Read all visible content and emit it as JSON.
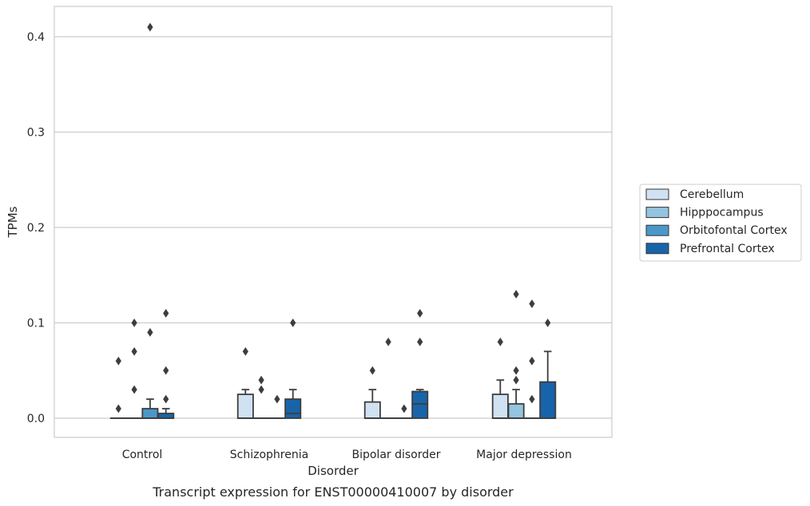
{
  "chart_data": {
    "type": "box",
    "caption": "Transcript expression for ENST00000410007 by disorder",
    "xlabel": "Disorder",
    "ylabel": "TPMs",
    "ylim": [
      -0.02,
      0.43
    ],
    "yticks": [
      0.0,
      0.1,
      0.2,
      0.3,
      0.4
    ],
    "ytick_labels": [
      "0.0",
      "0.1",
      "0.2",
      "0.3",
      "0.4"
    ],
    "grid": "horizontal",
    "legend_position": "right",
    "categories": [
      "Control",
      "Schizophrenia",
      "Bipolar disorder",
      "Major depression"
    ],
    "series": [
      {
        "name": "Cerebellum",
        "color": "#d0e1f2",
        "boxes": [
          {
            "q1": 0,
            "median": 0,
            "q3": 0,
            "whisker_low": 0,
            "whisker_high": 0,
            "outliers": [
              0.01,
              0.06
            ]
          },
          {
            "q1": 0,
            "median": 0,
            "q3": 0.025,
            "whisker_low": 0,
            "whisker_high": 0.03,
            "outliers": [
              0.07
            ]
          },
          {
            "q1": 0,
            "median": 0,
            "q3": 0.017,
            "whisker_low": 0,
            "whisker_high": 0.03,
            "outliers": [
              0.05
            ]
          },
          {
            "q1": 0,
            "median": 0,
            "q3": 0.025,
            "whisker_low": 0,
            "whisker_high": 0.04,
            "outliers": [
              0.08
            ]
          }
        ]
      },
      {
        "name": "Hipppocampus",
        "color": "#94c4df",
        "boxes": [
          {
            "q1": 0,
            "median": 0,
            "q3": 0,
            "whisker_low": 0,
            "whisker_high": 0,
            "outliers": [
              0.03,
              0.07,
              0.1
            ]
          },
          {
            "q1": 0,
            "median": 0,
            "q3": 0,
            "whisker_low": 0,
            "whisker_high": 0,
            "outliers": [
              0.03,
              0.04
            ]
          },
          {
            "q1": 0,
            "median": 0,
            "q3": 0,
            "whisker_low": 0,
            "whisker_high": 0,
            "outliers": [
              0.08
            ]
          },
          {
            "q1": 0,
            "median": 0,
            "q3": 0.015,
            "whisker_low": 0,
            "whisker_high": 0.03,
            "outliers": [
              0.04,
              0.05,
              0.13
            ]
          }
        ]
      },
      {
        "name": "Orbitofontal Cortex",
        "color": "#4a98c9",
        "boxes": [
          {
            "q1": 0,
            "median": 0,
            "q3": 0.01,
            "whisker_low": 0,
            "whisker_high": 0.02,
            "outliers": [
              0.09,
              0.41
            ]
          },
          {
            "q1": 0,
            "median": 0,
            "q3": 0,
            "whisker_low": 0,
            "whisker_high": 0,
            "outliers": [
              0.02
            ]
          },
          {
            "q1": 0,
            "median": 0,
            "q3": 0,
            "whisker_low": 0,
            "whisker_high": 0,
            "outliers": [
              0.01
            ]
          },
          {
            "q1": 0,
            "median": 0,
            "q3": 0,
            "whisker_low": 0,
            "whisker_high": 0,
            "outliers": [
              0.02,
              0.06,
              0.12
            ]
          }
        ]
      },
      {
        "name": "Prefrontal Cortex",
        "color": "#1764ab",
        "boxes": [
          {
            "q1": 0,
            "median": 0,
            "q3": 0.005,
            "whisker_low": 0,
            "whisker_high": 0.01,
            "outliers": [
              0.02,
              0.05,
              0.11
            ]
          },
          {
            "q1": 0,
            "median": 0.005,
            "q3": 0.02,
            "whisker_low": 0,
            "whisker_high": 0.03,
            "outliers": [
              0.1
            ]
          },
          {
            "q1": 0,
            "median": 0.015,
            "q3": 0.028,
            "whisker_low": 0,
            "whisker_high": 0.03,
            "outliers": [
              0.08,
              0.11
            ]
          },
          {
            "q1": 0,
            "median": 0,
            "q3": 0.038,
            "whisker_low": 0,
            "whisker_high": 0.07,
            "outliers": [
              0.1
            ]
          }
        ]
      }
    ]
  }
}
